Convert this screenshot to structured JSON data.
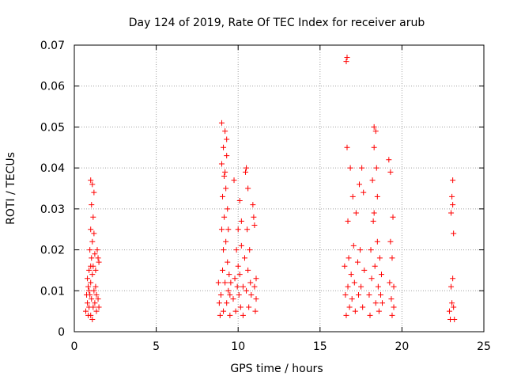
{
  "chart_data": {
    "type": "scatter",
    "title": "Day 124 of 2019, Rate Of TEC Index for receiver arub",
    "xlabel": "GPS time / hours",
    "ylabel": "ROTI / TECUs",
    "xlim": [
      0,
      25
    ],
    "ylim": [
      0,
      0.07
    ],
    "x_ticks": [
      "0",
      "5",
      "10",
      "15",
      "20",
      "25"
    ],
    "y_ticks": [
      "0",
      "0.01",
      "0.02",
      "0.03",
      "0.04",
      "0.05",
      "0.06",
      "0.07"
    ],
    "grid": true,
    "marker": "+",
    "color": "#ff0000",
    "series": [
      {
        "points": [
          [
            0.7,
            0.005
          ],
          [
            0.75,
            0.009
          ],
          [
            0.8,
            0.013
          ],
          [
            0.8,
            0.007
          ],
          [
            0.85,
            0.004
          ],
          [
            0.85,
            0.011
          ],
          [
            0.9,
            0.015
          ],
          [
            0.9,
            0.006
          ],
          [
            0.95,
            0.02
          ],
          [
            0.95,
            0.009
          ],
          [
            1.0,
            0.025
          ],
          [
            1.0,
            0.012
          ],
          [
            1.0,
            0.004
          ],
          [
            1.0,
            0.037
          ],
          [
            1.05,
            0.031
          ],
          [
            1.05,
            0.018
          ],
          [
            1.05,
            0.008
          ],
          [
            1.1,
            0.036
          ],
          [
            1.1,
            0.022
          ],
          [
            1.1,
            0.014
          ],
          [
            1.1,
            0.003
          ],
          [
            1.15,
            0.028
          ],
          [
            1.15,
            0.016
          ],
          [
            1.15,
            0.006
          ],
          [
            1.2,
            0.024
          ],
          [
            1.2,
            0.01
          ],
          [
            1.2,
            0.034
          ],
          [
            1.25,
            0.019
          ],
          [
            1.25,
            0.007
          ],
          [
            1.3,
            0.015
          ],
          [
            1.3,
            0.011
          ],
          [
            1.35,
            0.009
          ],
          [
            1.35,
            0.005
          ],
          [
            1.4,
            0.02
          ],
          [
            1.45,
            0.018
          ],
          [
            1.45,
            0.008
          ],
          [
            1.5,
            0.017
          ],
          [
            1.5,
            0.006
          ],
          [
            0.9,
            0.01
          ],
          [
            1.0,
            0.016
          ],
          [
            8.8,
            0.012
          ],
          [
            8.85,
            0.007
          ],
          [
            8.9,
            0.004
          ],
          [
            8.95,
            0.009
          ],
          [
            9.0,
            0.025
          ],
          [
            9.0,
            0.041
          ],
          [
            9.0,
            0.051
          ],
          [
            9.05,
            0.015
          ],
          [
            9.05,
            0.033
          ],
          [
            9.1,
            0.045
          ],
          [
            9.1,
            0.02
          ],
          [
            9.1,
            0.005
          ],
          [
            9.15,
            0.028
          ],
          [
            9.15,
            0.038
          ],
          [
            9.2,
            0.049
          ],
          [
            9.2,
            0.012
          ],
          [
            9.25,
            0.035
          ],
          [
            9.25,
            0.022
          ],
          [
            9.3,
            0.047
          ],
          [
            9.3,
            0.007
          ],
          [
            9.35,
            0.03
          ],
          [
            9.35,
            0.017
          ],
          [
            9.4,
            0.025
          ],
          [
            9.4,
            0.01
          ],
          [
            9.45,
            0.014
          ],
          [
            9.5,
            0.009
          ],
          [
            9.5,
            0.004
          ],
          [
            9.55,
            0.012
          ],
          [
            9.2,
            0.039
          ],
          [
            9.3,
            0.043
          ],
          [
            9.7,
            0.008
          ],
          [
            9.75,
            0.037
          ],
          [
            9.8,
            0.013
          ],
          [
            9.85,
            0.005
          ],
          [
            9.9,
            0.02
          ],
          [
            9.95,
            0.011
          ],
          [
            10.0,
            0.025
          ],
          [
            10.0,
            0.016
          ],
          [
            10.05,
            0.009
          ],
          [
            10.1,
            0.032
          ],
          [
            10.1,
            0.014
          ],
          [
            10.15,
            0.006
          ],
          [
            10.2,
            0.021
          ],
          [
            10.2,
            0.027
          ],
          [
            10.3,
            0.011
          ],
          [
            10.3,
            0.004
          ],
          [
            10.4,
            0.018
          ],
          [
            10.45,
            0.039
          ],
          [
            10.5,
            0.04
          ],
          [
            10.5,
            0.01
          ],
          [
            10.55,
            0.025
          ],
          [
            10.6,
            0.035
          ],
          [
            10.6,
            0.015
          ],
          [
            10.65,
            0.006
          ],
          [
            10.7,
            0.02
          ],
          [
            10.75,
            0.012
          ],
          [
            10.8,
            0.009
          ],
          [
            10.9,
            0.031
          ],
          [
            10.95,
            0.028
          ],
          [
            11.0,
            0.026
          ],
          [
            11.0,
            0.011
          ],
          [
            11.05,
            0.005
          ],
          [
            11.1,
            0.013
          ],
          [
            11.1,
            0.008
          ],
          [
            16.5,
            0.016
          ],
          [
            16.55,
            0.009
          ],
          [
            16.6,
            0.066
          ],
          [
            16.6,
            0.004
          ],
          [
            16.65,
            0.067
          ],
          [
            16.65,
            0.045
          ],
          [
            16.7,
            0.027
          ],
          [
            16.7,
            0.011
          ],
          [
            16.75,
            0.018
          ],
          [
            16.8,
            0.006
          ],
          [
            16.85,
            0.04
          ],
          [
            16.9,
            0.014
          ],
          [
            16.95,
            0.008
          ],
          [
            17.0,
            0.033
          ],
          [
            17.05,
            0.021
          ],
          [
            17.1,
            0.012
          ],
          [
            17.15,
            0.005
          ],
          [
            17.2,
            0.029
          ],
          [
            17.3,
            0.017
          ],
          [
            17.35,
            0.009
          ],
          [
            17.4,
            0.036
          ],
          [
            17.45,
            0.02
          ],
          [
            17.5,
            0.011
          ],
          [
            17.55,
            0.04
          ],
          [
            17.6,
            0.006
          ],
          [
            17.65,
            0.034
          ],
          [
            17.7,
            0.015
          ],
          [
            18.0,
            0.009
          ],
          [
            18.05,
            0.004
          ],
          [
            18.1,
            0.02
          ],
          [
            18.15,
            0.013
          ],
          [
            18.2,
            0.037
          ],
          [
            18.25,
            0.027
          ],
          [
            18.3,
            0.045
          ],
          [
            18.3,
            0.05
          ],
          [
            18.35,
            0.016
          ],
          [
            18.4,
            0.007
          ],
          [
            18.4,
            0.049
          ],
          [
            18.45,
            0.04
          ],
          [
            18.5,
            0.033
          ],
          [
            18.5,
            0.022
          ],
          [
            18.55,
            0.011
          ],
          [
            18.6,
            0.005
          ],
          [
            18.65,
            0.018
          ],
          [
            18.7,
            0.009
          ],
          [
            18.75,
            0.014
          ],
          [
            18.8,
            0.007
          ],
          [
            18.3,
            0.029
          ],
          [
            19.2,
            0.042
          ],
          [
            19.25,
            0.012
          ],
          [
            19.3,
            0.039
          ],
          [
            19.3,
            0.022
          ],
          [
            19.35,
            0.008
          ],
          [
            19.4,
            0.018
          ],
          [
            19.4,
            0.004
          ],
          [
            19.45,
            0.028
          ],
          [
            19.5,
            0.011
          ],
          [
            19.5,
            0.006
          ],
          [
            22.9,
            0.005
          ],
          [
            22.95,
            0.003
          ],
          [
            23.0,
            0.011
          ],
          [
            23.0,
            0.029
          ],
          [
            23.05,
            0.033
          ],
          [
            23.05,
            0.007
          ],
          [
            23.1,
            0.037
          ],
          [
            23.1,
            0.031
          ],
          [
            23.1,
            0.013
          ],
          [
            23.15,
            0.024
          ],
          [
            23.15,
            0.006
          ],
          [
            23.2,
            0.003
          ]
        ]
      }
    ]
  }
}
